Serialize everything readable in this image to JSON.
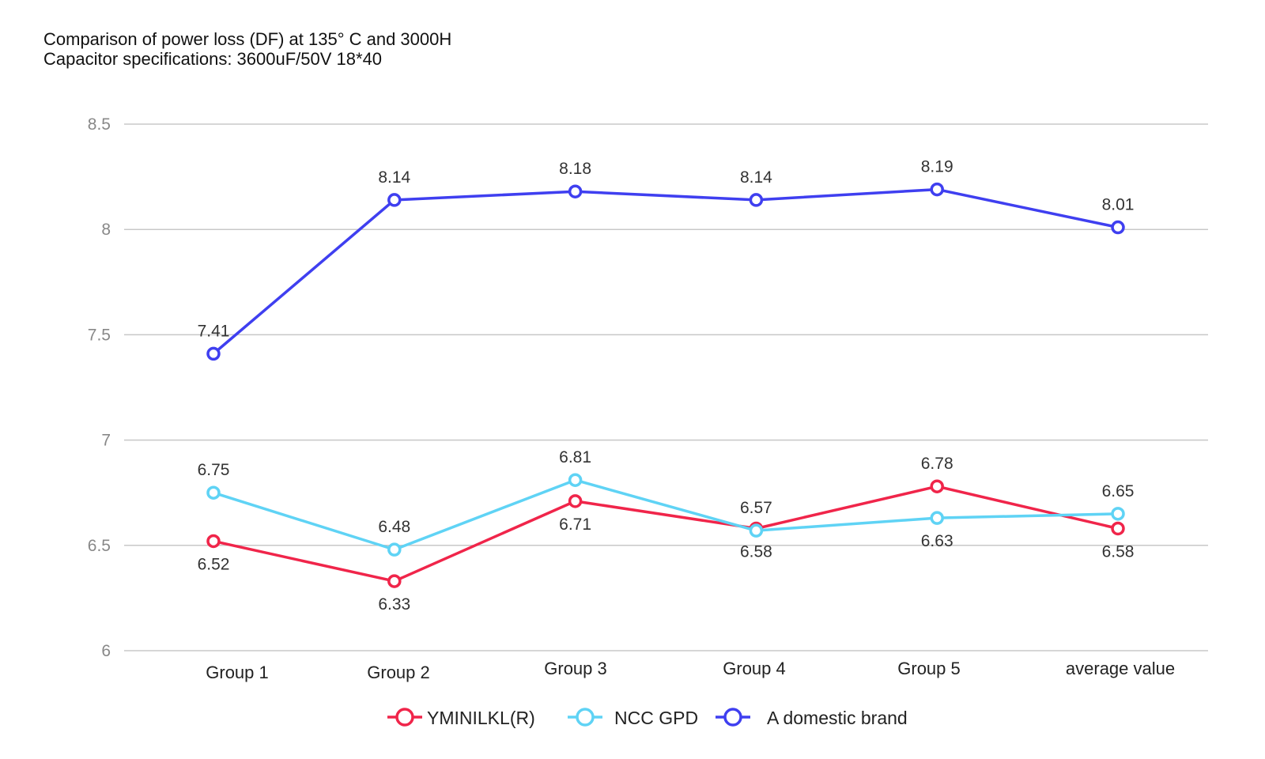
{
  "chart_data": {
    "type": "line",
    "title": "Comparison of power loss (DF) at 135° C and 3000H",
    "subtitle": "Capacitor specifications: 3600uF/50V 18*40",
    "title_lines": [
      "Comparison of power loss (DF) at 135°  C and 3000H",
      "Capacitor specifications: 3600uF/50V 18*40"
    ],
    "xlabel": "",
    "ylabel": "",
    "categories": [
      "Group 1",
      "Group 2",
      "Group 3",
      "Group 4",
      "Group 5",
      "average value"
    ],
    "ylim": [
      6,
      8.5
    ],
    "yticks": [
      6,
      6.5,
      7,
      7.5,
      8,
      8.5
    ],
    "ytick_labels": [
      "6",
      "6.5",
      "7",
      "7.5",
      "8",
      "8.5"
    ],
    "grid": true,
    "legend_position": "bottom",
    "series": [
      {
        "name": "YMINILKL(R)",
        "color": "#f0254a",
        "values": [
          6.52,
          6.33,
          6.71,
          6.58,
          6.78,
          6.58
        ],
        "labels": [
          "6.52",
          "6.33",
          "6.71",
          "6.58",
          "6.78",
          "6.58"
        ]
      },
      {
        "name": "NCC GPD",
        "color": "#5fd3f5",
        "values": [
          6.75,
          6.48,
          6.81,
          6.57,
          6.63,
          6.65
        ],
        "labels": [
          "6.75",
          "6.48",
          "6.81",
          "6.57",
          "6.63",
          "6.65"
        ]
      },
      {
        "name": "A domestic brand",
        "color": "#3f3ff0",
        "values": [
          7.41,
          8.14,
          8.18,
          8.14,
          8.19,
          8.01
        ],
        "labels": [
          "7.41",
          "8.14",
          "8.18",
          "8.14",
          "8.19",
          "8.01"
        ]
      }
    ]
  }
}
